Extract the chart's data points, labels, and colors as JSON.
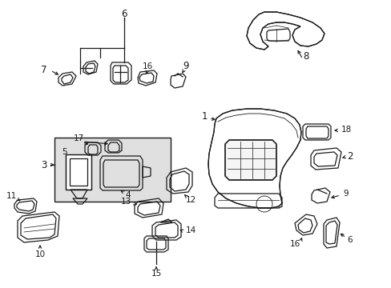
{
  "bg_color": "#ffffff",
  "line_color": "#1a1a1a",
  "highlight_box_color": "#e0e0e0",
  "fig_width": 4.89,
  "fig_height": 3.6,
  "dpi": 100,
  "label_fontsize": 8.5,
  "small_label_fontsize": 7.5
}
